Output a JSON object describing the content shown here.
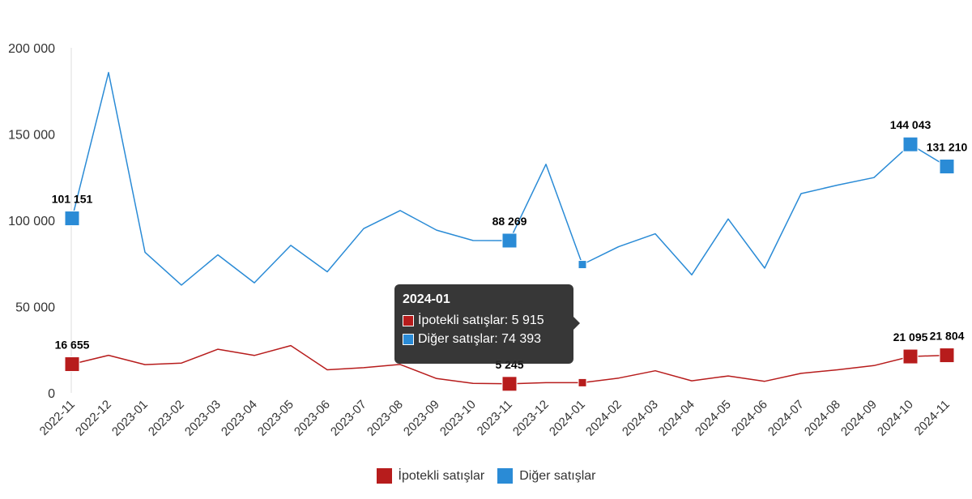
{
  "chart_data": {
    "type": "line",
    "title": "",
    "xlabel": "",
    "ylabel": "",
    "ylim": [
      0,
      200000
    ],
    "yticks": [
      "0",
      "50 000",
      "100 000",
      "150 000",
      "200 000"
    ],
    "categories": [
      "2022-11",
      "2022-12",
      "2023-01",
      "2023-02",
      "2023-03",
      "2023-04",
      "2023-05",
      "2023-06",
      "2023-07",
      "2023-08",
      "2023-09",
      "2023-10",
      "2023-11",
      "2023-12",
      "2024-01",
      "2024-02",
      "2024-03",
      "2024-04",
      "2024-05",
      "2024-06",
      "2024-07",
      "2024-08",
      "2024-09",
      "2024-10",
      "2024-11"
    ],
    "series": [
      {
        "name": "İpotekli satışlar",
        "color": "#b71c1c",
        "values": [
          16655,
          21800,
          16400,
          17300,
          25300,
          21700,
          27400,
          13400,
          14600,
          16500,
          8300,
          5500,
          5245,
          5900,
          5915,
          8600,
          12800,
          7000,
          9800,
          6700,
          11300,
          13400,
          15800,
          21095,
          21804
        ],
        "labeled_indices": [
          0,
          12,
          23,
          24
        ],
        "labels": [
          "16 655",
          "5 245",
          "21 095",
          "21 804"
        ]
      },
      {
        "name": "Diğer satışlar",
        "color": "#2a8bd6",
        "values": [
          101151,
          185700,
          81500,
          62500,
          80000,
          63800,
          85500,
          70200,
          95200,
          105700,
          94300,
          88300,
          88269,
          132500,
          74393,
          84800,
          92200,
          68400,
          100800,
          72300,
          115500,
          120400,
          124800,
          144043,
          131210
        ],
        "labeled_indices": [
          0,
          12,
          23,
          24
        ],
        "labels": [
          "101 151",
          "88 269",
          "144 043",
          "131 210"
        ]
      }
    ],
    "legend_position": "bottom",
    "grid": false
  },
  "tooltip": {
    "title": "2024-01",
    "rows": [
      {
        "text": "İpotekli satışlar: 5 915",
        "color": "#b71c1c"
      },
      {
        "text": "Diğer satışlar: 74 393",
        "color": "#2a8bd6"
      }
    ]
  },
  "legend": {
    "items": [
      {
        "label": "İpotekli satışlar",
        "color": "#b71c1c"
      },
      {
        "label": "Diğer satışlar",
        "color": "#2a8bd6"
      }
    ]
  }
}
